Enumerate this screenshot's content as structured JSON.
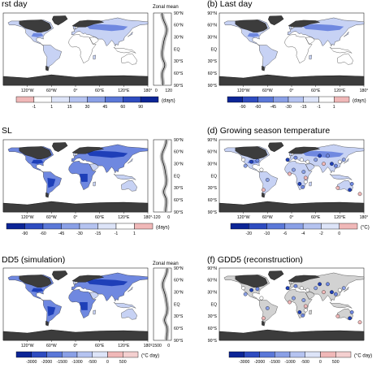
{
  "panels": {
    "a": {
      "title": "rst day",
      "zonal_label": "Zonal mean",
      "zonal_ticks": [
        "0",
        "120"
      ],
      "colorbar": {
        "labels": [
          "-1",
          "1",
          "15",
          "30",
          "45",
          "60",
          "90"
        ],
        "unit": "(days)",
        "colors": [
          "#f0b8b8",
          "#ffffff",
          "#dde4f8",
          "#b5c3f0",
          "#8aa0e6",
          "#5b78d8",
          "#2e4cc0",
          "#0c2596"
        ]
      }
    },
    "b": {
      "title": "(b) Last day",
      "colorbar": {
        "labels": [
          "-90",
          "-60",
          "-45",
          "-30",
          "-15",
          "-1",
          "1"
        ],
        "unit": "(days)",
        "colors": [
          "#0c2596",
          "#2e4cc0",
          "#5b78d8",
          "#8aa0e6",
          "#b5c3f0",
          "#dde4f8",
          "#ffffff",
          "#f0b8b8"
        ]
      }
    },
    "c": {
      "title": "SL",
      "zonal_label": "",
      "zonal_ticks": [
        "-120",
        "0"
      ],
      "colorbar": {
        "labels": [
          "-90",
          "-60",
          "-45",
          "-30",
          "-15",
          "-1",
          "1"
        ],
        "unit": "(days)",
        "colors": [
          "#0c2596",
          "#2e4cc0",
          "#5b78d8",
          "#8aa0e6",
          "#b5c3f0",
          "#dde4f8",
          "#ffffff",
          "#f0b8b8"
        ]
      }
    },
    "d": {
      "title": "(d) Growing season temperature",
      "colorbar": {
        "labels": [
          "-20",
          "-10",
          "-6",
          "-4",
          "-2",
          "0"
        ],
        "unit": "(°C)",
        "colors": [
          "#0c2596",
          "#2e4cc0",
          "#5b78d8",
          "#8aa0e6",
          "#b5c3f0",
          "#dde4f8",
          "#f0b8b8"
        ]
      }
    },
    "e": {
      "title": "DD5 (simulation)",
      "zonal_label": "Zonal mean",
      "zonal_ticks": [
        "-1500",
        "0"
      ],
      "colorbar": {
        "labels": [
          "-3000",
          "-2000",
          "-1500",
          "-1000",
          "-500",
          "0",
          "500"
        ],
        "unit": "(°C day)",
        "colors": [
          "#0c2596",
          "#2e4cc0",
          "#5b78d8",
          "#8aa0e6",
          "#b5c3f0",
          "#dde4f8",
          "#f0b8b8",
          "#f4d0d0"
        ]
      }
    },
    "f": {
      "title": "(f) GDD5 (reconstruction)",
      "colorbar": {
        "labels": [
          "-3000",
          "-2000",
          "-1500",
          "-1000",
          "-500",
          "0",
          "500"
        ],
        "unit": "(°C day)",
        "colors": [
          "#0c2596",
          "#2e4cc0",
          "#5b78d8",
          "#8aa0e6",
          "#b5c3f0",
          "#dde4f8",
          "#f0b8b8",
          "#f4d0d0"
        ]
      }
    }
  },
  "lon_labels_left": [
    "120°W",
    "60°W",
    "0°",
    "60°E",
    "120°E",
    "180°"
  ],
  "lon_labels_right": [
    "120°W",
    "60°W",
    "0°",
    "60°E",
    "120°E",
    "180°"
  ],
  "lat_labels": [
    "90°N",
    "60°N",
    "30°N",
    "EQ",
    "30°S",
    "60°S",
    "90°S"
  ],
  "colors": {
    "ice": "#3c3c3c",
    "land_gray": "#d2d2d2",
    "ocean": "#ffffff",
    "blue_dark": "#1e3fb8",
    "blue_mid": "#6f88e0",
    "blue_light": "#c7d2f4"
  }
}
